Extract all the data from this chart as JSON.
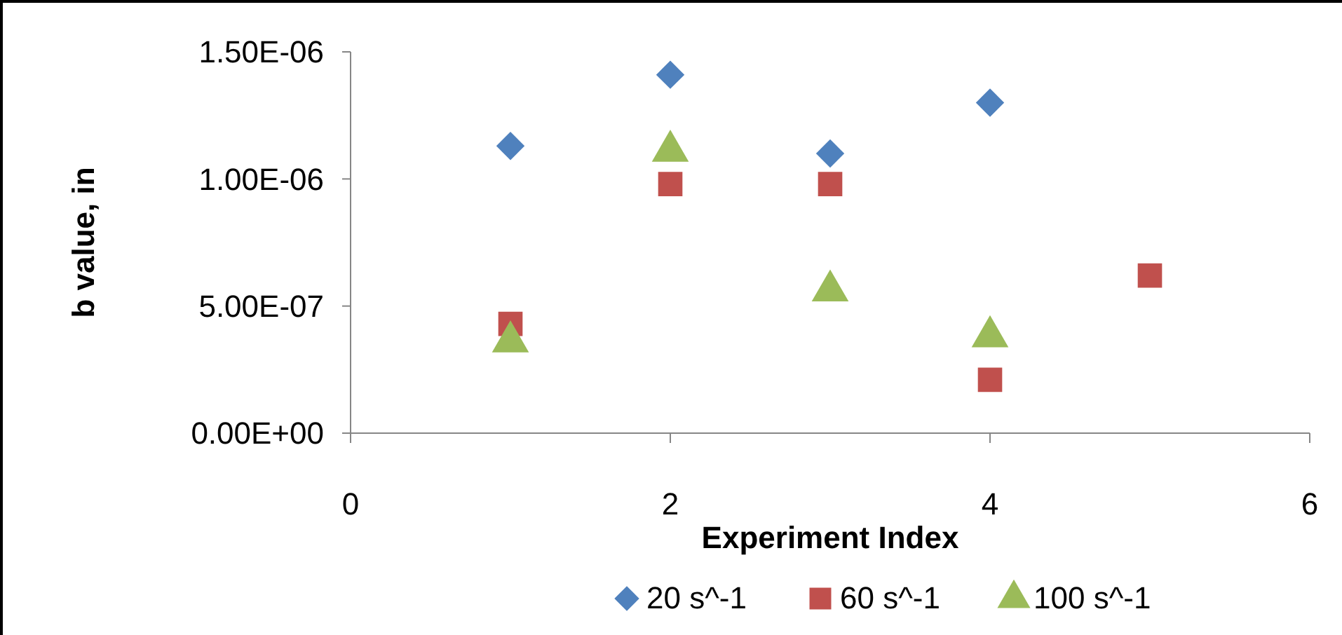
{
  "chart_data": {
    "type": "scatter",
    "xlabel": "Experiment Index",
    "ylabel": "b value, in",
    "xlim": [
      0,
      6
    ],
    "xticks": [
      0,
      2,
      4,
      6
    ],
    "ylim": [
      0,
      1.5e-06
    ],
    "yticks": [
      {
        "value": 0,
        "label": "0.00E+00"
      },
      {
        "value": 5e-07,
        "label": "5.00E-07"
      },
      {
        "value": 1e-06,
        "label": "1.00E-06"
      },
      {
        "value": 1.5e-06,
        "label": "1.50E-06"
      }
    ],
    "grid": false,
    "legend": "bottom",
    "series": [
      {
        "name": "20 s^-1",
        "color": "#4f81bd",
        "marker": "diamond",
        "x": [
          1,
          2,
          3,
          4
        ],
        "values": [
          1.13e-06,
          1.41e-06,
          1.1e-06,
          1.3e-06
        ]
      },
      {
        "name": "60 s^-1",
        "color": "#c0504d",
        "marker": "square",
        "x": [
          1,
          2,
          3,
          4,
          5
        ],
        "values": [
          4.3e-07,
          9.8e-07,
          9.8e-07,
          2.1e-07,
          6.2e-07
        ]
      },
      {
        "name": "100 s^-1",
        "color": "#9bbb59",
        "marker": "triangle",
        "x": [
          1,
          2,
          3,
          4
        ],
        "values": [
          3.6e-07,
          1.11e-06,
          5.6e-07,
          3.8e-07
        ]
      }
    ]
  }
}
